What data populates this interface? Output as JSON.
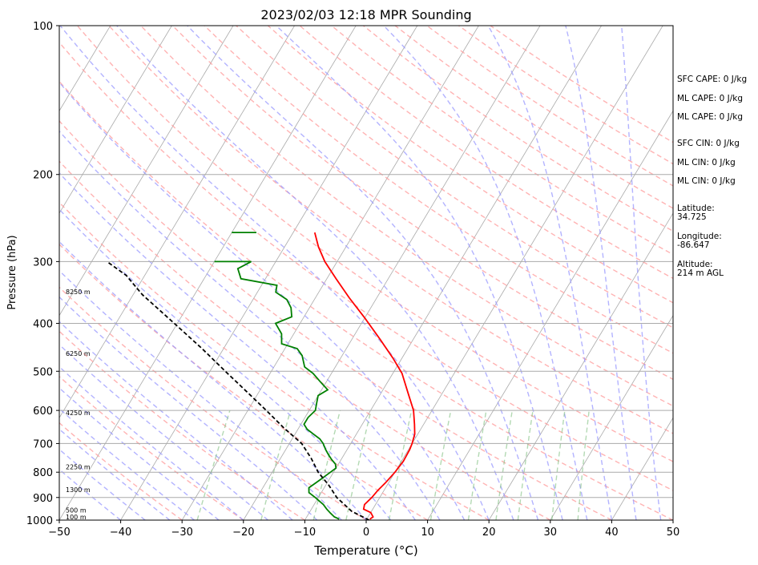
{
  "chart_data": {
    "type": "line",
    "subtype": "skew-t",
    "title": "2023/02/03 12:18 MPR Sounding",
    "xlabel": "Temperature (°C)",
    "ylabel": "Pressure (hPa)",
    "xlim": [
      -50,
      50
    ],
    "ylim": [
      1000,
      100
    ],
    "y_scale": "log",
    "x_ticks": [
      -50,
      -40,
      -30,
      -20,
      -10,
      0,
      10,
      20,
      30,
      40,
      50
    ],
    "y_ticks": [
      100,
      200,
      300,
      400,
      500,
      600,
      700,
      800,
      900,
      1000
    ],
    "grid": "horizontal at pressure ticks",
    "series": [
      {
        "color": "#ff0000",
        "points": [
          [
            0.5,
            995
          ],
          [
            0.8,
            985
          ],
          [
            0.0,
            965
          ],
          [
            -1.5,
            950
          ],
          [
            -1.8,
            930
          ],
          [
            -1.3,
            900
          ],
          [
            -1.0,
            870
          ],
          [
            -0.5,
            840
          ],
          [
            0.0,
            800
          ],
          [
            0.3,
            760
          ],
          [
            0.2,
            720
          ],
          [
            0.0,
            700
          ],
          [
            -0.5,
            670
          ],
          [
            -1.5,
            640
          ],
          [
            -3.0,
            600
          ],
          [
            -5.5,
            555
          ],
          [
            -8.5,
            505
          ],
          [
            -11.5,
            470
          ],
          [
            -15.5,
            430
          ],
          [
            -20,
            390
          ],
          [
            -24.5,
            355
          ],
          [
            -28.5,
            325
          ],
          [
            -32,
            300
          ],
          [
            -34.5,
            280
          ],
          [
            -36.5,
            262
          ]
        ]
      },
      {
        "color": "#008000",
        "points": [
          [
            -4.5,
            995
          ],
          [
            -5.5,
            985
          ],
          [
            -6.5,
            968
          ],
          [
            -7.5,
            950
          ],
          [
            -8.5,
            930
          ],
          [
            -9.5,
            915
          ],
          [
            -10.5,
            900
          ],
          [
            -12,
            880
          ],
          [
            -12.5,
            860
          ],
          [
            -12,
            845
          ],
          [
            -11.5,
            830
          ],
          [
            -11,
            815
          ],
          [
            -10.5,
            800
          ],
          [
            -10,
            785
          ],
          [
            -10.5,
            770
          ],
          [
            -11.5,
            755
          ],
          [
            -12.5,
            738
          ],
          [
            -13.5,
            720
          ],
          [
            -14.5,
            700
          ],
          [
            -15.5,
            685
          ],
          [
            -17,
            670
          ],
          [
            -18.5,
            655
          ],
          [
            -19.5,
            640
          ],
          [
            -19.5,
            620
          ],
          [
            -19,
            600
          ],
          [
            -19.5,
            580
          ],
          [
            -20,
            560
          ],
          [
            -19,
            545
          ],
          [
            -21,
            525
          ],
          [
            -23,
            505
          ],
          [
            -25,
            490
          ],
          [
            -26.5,
            465
          ],
          [
            -28,
            450
          ],
          [
            -31,
            440
          ],
          [
            -32,
            420
          ],
          [
            -34,
            400
          ],
          [
            -32,
            388
          ],
          [
            -33,
            372
          ],
          [
            -34.5,
            358
          ],
          [
            -37,
            346
          ],
          [
            -37.5,
            335
          ],
          [
            -44,
            325
          ],
          [
            -45.5,
            310
          ],
          [
            -44,
            300
          ],
          [
            -45,
            300
          ],
          [
            -46,
            300
          ],
          [
            -50,
            300
          ]
        ]
      },
      {
        "color": "#008000",
        "points": [
          [
            -46,
            262
          ],
          [
            -50,
            262
          ]
        ]
      },
      {
        "color": "#000000",
        "dashed": true,
        "points": [
          [
            0.5,
            1000
          ],
          [
            -3.2,
            960
          ],
          [
            -7.0,
            900
          ],
          [
            -9.5,
            850
          ],
          [
            -12.5,
            800
          ],
          [
            -15.0,
            750
          ],
          [
            -18.0,
            700
          ],
          [
            -22.5,
            650
          ],
          [
            -27.0,
            600
          ],
          [
            -32.0,
            550
          ],
          [
            -37.5,
            500
          ],
          [
            -43.5,
            450
          ],
          [
            -50.5,
            400
          ],
          [
            -58.5,
            350
          ],
          [
            -63.0,
            320
          ],
          [
            -67.5,
            300
          ]
        ]
      }
    ],
    "height_labels": [
      {
        "text": "100 m",
        "p": 986
      },
      {
        "text": "500 m",
        "p": 955
      },
      {
        "text": "1300 m",
        "p": 868
      },
      {
        "text": "2250 m",
        "p": 780
      },
      {
        "text": "4250 m",
        "p": 607
      },
      {
        "text": "6250 m",
        "p": 460
      },
      {
        "text": "8250 m",
        "p": 345
      }
    ],
    "colors": {
      "temperature": "#ff0000",
      "dewpoint": "#008000",
      "parcel": "#000000",
      "dry_adiabat": "#ff9999",
      "moist_adiabat": "#9999ff",
      "mixing_ratio": "#80c080",
      "isotherm": "#aaaaaa",
      "grid": "#aaaaaa"
    }
  },
  "side_panel": {
    "sfc_cape": "SFC CAPE: 0 J/kg",
    "ml_cape_1": "ML CAPE: 0 J/kg",
    "ml_cape_2": "ML CAPE: 0 J/kg",
    "sfc_cin": "SFC CIN: 0 J/kg",
    "ml_cin_1": "ML CIN: 0 J/kg",
    "ml_cin_2": "ML CIN: 0 J/kg",
    "latitude_label": "Latitude:",
    "latitude_value": "34.725",
    "longitude_label": "Longitude:",
    "longitude_value": "-86.647",
    "altitude_label": "Altitude:",
    "altitude_value": "214 m AGL"
  }
}
